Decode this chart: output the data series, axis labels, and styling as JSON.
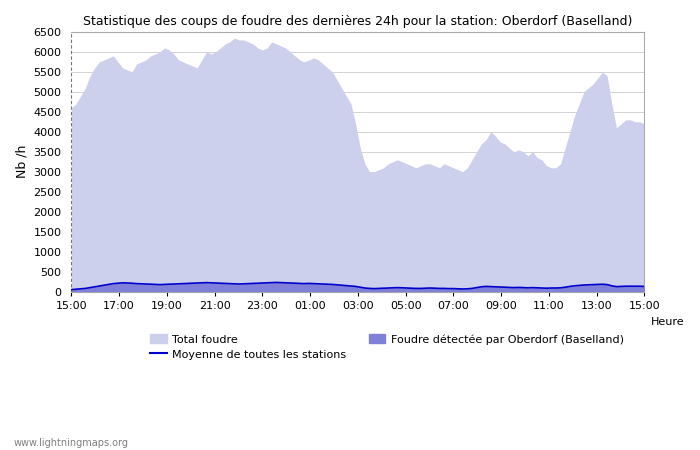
{
  "title": "Statistique des coups de foudre des dernières 24h pour la station: Oberdorf (Baselland)",
  "xlabel": "Heure",
  "ylabel": "Nb /h",
  "ylim": [
    0,
    6500
  ],
  "yticks": [
    0,
    500,
    1000,
    1500,
    2000,
    2500,
    3000,
    3500,
    4000,
    4500,
    5000,
    5500,
    6000,
    6500
  ],
  "xtick_labels": [
    "15:00",
    "17:00",
    "19:00",
    "21:00",
    "23:00",
    "01:00",
    "03:00",
    "05:00",
    "07:00",
    "09:00",
    "11:00",
    "13:00",
    "15:00"
  ],
  "background_color": "#ffffff",
  "plot_bg_color": "#ffffff",
  "grid_color": "#cccccc",
  "total_fill_color": "#d8daف0",
  "total_edge_color": "#c8ccee",
  "detected_fill_color": "#8888dd",
  "moyenne_color": "#0000cc",
  "watermark": "www.lightningmaps.org",
  "total_foudre": [
    4600,
    4700,
    4900,
    5100,
    5400,
    5600,
    5750,
    5800,
    5850,
    5900,
    5750,
    5600,
    5550,
    5500,
    5700,
    5750,
    5800,
    5900,
    5950,
    6000,
    6100,
    6050,
    5950,
    5800,
    5750,
    5700,
    5650,
    5600,
    5800,
    6000,
    5950,
    6000,
    6100,
    6200,
    6250,
    6350,
    6300,
    6300,
    6250,
    6200,
    6100,
    6050,
    6100,
    6250,
    6200,
    6150,
    6100,
    6000,
    5900,
    5800,
    5750,
    5800,
    5850,
    5800,
    5700,
    5600,
    5500,
    5300,
    5100,
    4900,
    4700,
    4200,
    3600,
    3200,
    3000,
    3000,
    3050,
    3100,
    3200,
    3250,
    3300,
    3250,
    3200,
    3150,
    3100,
    3150,
    3200,
    3200,
    3150,
    3100,
    3200,
    3150,
    3100,
    3050,
    3000,
    3100,
    3300,
    3500,
    3700,
    3800,
    4000,
    3900,
    3750,
    3700,
    3600,
    3500,
    3550,
    3500,
    3400,
    3500,
    3350,
    3300,
    3150,
    3100,
    3100,
    3200,
    3600,
    4000,
    4400,
    4700,
    5000,
    5100,
    5200,
    5350,
    5500,
    5400,
    4700,
    4100,
    4200,
    4300,
    4300,
    4250,
    4250,
    4200
  ],
  "detected_foudre": [
    50,
    60,
    70,
    80,
    100,
    120,
    140,
    160,
    180,
    200,
    210,
    220,
    215,
    210,
    200,
    195,
    190,
    185,
    180,
    175,
    180,
    185,
    190,
    195,
    200,
    205,
    210,
    215,
    220,
    225,
    220,
    215,
    210,
    205,
    200,
    195,
    190,
    195,
    200,
    205,
    210,
    215,
    220,
    225,
    230,
    225,
    220,
    215,
    210,
    205,
    200,
    205,
    200,
    195,
    190,
    185,
    180,
    170,
    160,
    150,
    140,
    130,
    110,
    90,
    80,
    75,
    80,
    85,
    90,
    95,
    100,
    95,
    90,
    85,
    80,
    80,
    85,
    90,
    85,
    80,
    80,
    75,
    75,
    70,
    65,
    70,
    80,
    100,
    120,
    130,
    125,
    120,
    115,
    110,
    105,
    100,
    105,
    100,
    95,
    100,
    95,
    90,
    85,
    90,
    90,
    95,
    110,
    130,
    145,
    155,
    165,
    170,
    175,
    180,
    185,
    175,
    145,
    125,
    130,
    135,
    135,
    135,
    135,
    130
  ],
  "moyenne": [
    50,
    60,
    70,
    80,
    100,
    120,
    140,
    160,
    180,
    200,
    210,
    220,
    215,
    210,
    200,
    195,
    190,
    185,
    180,
    175,
    180,
    185,
    190,
    195,
    200,
    205,
    210,
    215,
    220,
    225,
    220,
    215,
    210,
    205,
    200,
    195,
    190,
    195,
    200,
    205,
    210,
    215,
    220,
    225,
    230,
    225,
    220,
    215,
    210,
    205,
    200,
    205,
    200,
    195,
    190,
    185,
    180,
    170,
    160,
    150,
    140,
    130,
    110,
    90,
    80,
    75,
    80,
    85,
    90,
    95,
    100,
    95,
    90,
    85,
    80,
    80,
    85,
    90,
    85,
    80,
    80,
    75,
    75,
    70,
    65,
    70,
    80,
    100,
    120,
    130,
    125,
    120,
    115,
    110,
    105,
    100,
    105,
    100,
    95,
    100,
    95,
    90,
    85,
    90,
    90,
    95,
    110,
    130,
    145,
    155,
    165,
    170,
    175,
    180,
    185,
    175,
    145,
    125,
    130,
    135,
    135,
    135,
    135,
    130
  ]
}
